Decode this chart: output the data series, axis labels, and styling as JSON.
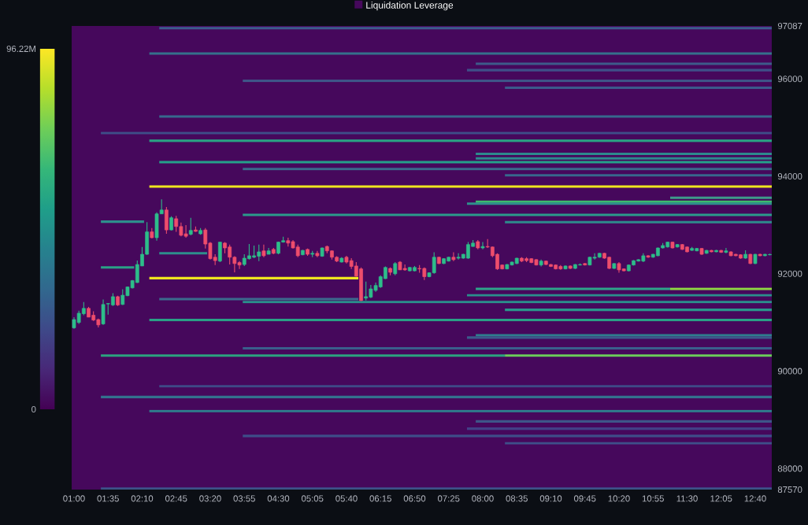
{
  "chart_data": {
    "type": "candlestick",
    "x": [
      1,
      1.0833,
      1.1667,
      1.25,
      1.3333,
      1.4167,
      1.5,
      1.5833,
      1.6667,
      1.75,
      1.8333,
      1.9167,
      2,
      2.0833,
      2.1667,
      2.25,
      2.3333,
      2.4167,
      2.5,
      2.5833,
      2.6667,
      2.75,
      2.8333,
      2.9167,
      3,
      3.0833,
      3.1667,
      3.25,
      3.3333,
      3.4167,
      3.5,
      3.5833,
      3.6667,
      3.75,
      3.8333,
      3.9167,
      4,
      4.0833,
      4.1667,
      4.25,
      4.3333,
      4.4167,
      4.5,
      4.5833,
      4.6667,
      4.75,
      4.8333,
      4.9167,
      5,
      5.0833,
      5.1667,
      5.25,
      5.3333,
      5.4167,
      5.5,
      5.5833,
      5.6667,
      5.75,
      5.8333,
      5.9167,
      6,
      6.0833,
      6.1667,
      6.25,
      6.3333,
      6.4167,
      6.5,
      6.5833,
      6.6667,
      6.75,
      6.8333,
      6.9167,
      7,
      7.0833,
      7.1667,
      7.25,
      7.3333,
      7.4167,
      7.5,
      7.5833,
      7.6667,
      7.75,
      7.8333,
      7.9167,
      8,
      8.0833,
      8.1667,
      8.25,
      8.3333,
      8.4167,
      8.5,
      8.5833,
      8.6667,
      8.75,
      8.8333,
      8.9167,
      9,
      9.0833,
      9.1667,
      9.25,
      9.3333,
      9.4167,
      9.5,
      9.5833,
      9.6667,
      9.75,
      9.8333,
      9.9167,
      10,
      10.0833,
      10.1667,
      10.25,
      10.3333,
      10.4167,
      10.5,
      10.5833,
      10.6667,
      10.75,
      10.8333,
      10.9167,
      11,
      11.0833,
      11.1667,
      11.25,
      11.3333,
      11.4167,
      11.5,
      11.5833,
      11.6667,
      11.75,
      11.8333,
      11.9167,
      12,
      12.0833,
      12.1667,
      12.25,
      12.3333,
      12.4167,
      12.5,
      12.5833,
      12.6667,
      12.75,
      12.8333,
      12.9167
    ],
    "ohlc": [
      [
        90890,
        91110,
        90870,
        91060
      ],
      [
        91000,
        91240,
        90970,
        91190
      ],
      [
        91180,
        91420,
        91150,
        91290
      ],
      [
        91290,
        91320,
        91110,
        91110
      ],
      [
        91150,
        91230,
        91030,
        91050
      ],
      [
        91060,
        91080,
        90900,
        90950
      ],
      [
        90970,
        91470,
        90950,
        91370
      ],
      [
        91380,
        91390,
        91160,
        91390
      ],
      [
        91360,
        91600,
        91340,
        91530
      ],
      [
        91530,
        91550,
        91340,
        91360
      ],
      [
        91370,
        91680,
        91360,
        91560
      ],
      [
        91550,
        91740,
        91540,
        91730
      ],
      [
        91710,
        91870,
        91700,
        91860
      ],
      [
        91820,
        92270,
        91810,
        92190
      ],
      [
        92160,
        92550,
        92160,
        92400
      ],
      [
        92400,
        93060,
        92390,
        92860
      ],
      [
        92860,
        92940,
        92730,
        92740
      ],
      [
        92740,
        93260,
        92680,
        93230
      ],
      [
        93230,
        93530,
        93230,
        93310
      ],
      [
        93310,
        93370,
        92820,
        92900
      ],
      [
        92900,
        93180,
        92890,
        93150
      ],
      [
        93130,
        93190,
        92860,
        92970
      ],
      [
        92970,
        93050,
        92770,
        92790
      ],
      [
        92820,
        93000,
        92740,
        92770
      ],
      [
        92810,
        93150,
        92790,
        92890
      ],
      [
        92900,
        92970,
        92860,
        92870
      ],
      [
        92820,
        92940,
        92800,
        92890
      ],
      [
        92900,
        92940,
        92520,
        92610
      ],
      [
        92630,
        92650,
        92290,
        92310
      ],
      [
        92340,
        92400,
        92180,
        92270
      ],
      [
        92260,
        92650,
        92240,
        92650
      ],
      [
        92630,
        92650,
        92420,
        92530
      ],
      [
        92550,
        92600,
        92190,
        92340
      ],
      [
        92340,
        92360,
        92030,
        92210
      ],
      [
        92230,
        92260,
        92100,
        92180
      ],
      [
        92190,
        92400,
        92160,
        92320
      ],
      [
        92310,
        92610,
        92290,
        92370
      ],
      [
        92340,
        92580,
        92320,
        92370
      ],
      [
        92360,
        92600,
        92260,
        92450
      ],
      [
        92470,
        92600,
        92340,
        92370
      ],
      [
        92400,
        92530,
        92400,
        92470
      ],
      [
        92500,
        92530,
        92400,
        92420
      ],
      [
        92420,
        92660,
        92400,
        92650
      ],
      [
        92650,
        92760,
        92640,
        92680
      ],
      [
        92680,
        92740,
        92560,
        92630
      ],
      [
        92660,
        92690,
        92520,
        92530
      ],
      [
        92550,
        92600,
        92340,
        92370
      ],
      [
        92390,
        92490,
        92380,
        92480
      ],
      [
        92500,
        92520,
        92370,
        92400
      ],
      [
        92400,
        92470,
        92340,
        92420
      ],
      [
        92420,
        92470,
        92340,
        92370
      ],
      [
        92360,
        92540,
        92350,
        92530
      ],
      [
        92560,
        92580,
        92420,
        92470
      ],
      [
        92470,
        92480,
        92290,
        92340
      ],
      [
        92340,
        92360,
        92240,
        92260
      ],
      [
        92240,
        92340,
        92230,
        92320
      ],
      [
        92340,
        92370,
        92210,
        92240
      ],
      [
        92270,
        92320,
        92100,
        92150
      ],
      [
        92160,
        92240,
        91940,
        91950
      ],
      [
        92100,
        92130,
        91440,
        91450
      ],
      [
        91500,
        91840,
        91450,
        91530
      ],
      [
        91520,
        91770,
        91500,
        91690
      ],
      [
        91660,
        91820,
        91630,
        91760
      ],
      [
        91730,
        91970,
        91710,
        91940
      ],
      [
        91900,
        92150,
        91890,
        92130
      ],
      [
        92110,
        92130,
        91970,
        92030
      ],
      [
        92000,
        92240,
        91970,
        92210
      ],
      [
        92240,
        92260,
        92080,
        92080
      ],
      [
        92110,
        92190,
        92060,
        92080
      ],
      [
        92060,
        92140,
        92050,
        92130
      ],
      [
        92060,
        92160,
        92050,
        92130
      ],
      [
        92110,
        92180,
        92020,
        92100
      ],
      [
        92110,
        92130,
        91870,
        91940
      ],
      [
        91940,
        92030,
        91930,
        92020
      ],
      [
        92020,
        92440,
        92000,
        92340
      ],
      [
        92340,
        92350,
        92200,
        92210
      ],
      [
        92210,
        92320,
        92200,
        92310
      ],
      [
        92260,
        92350,
        92250,
        92340
      ],
      [
        92340,
        92440,
        92260,
        92290
      ],
      [
        92320,
        92420,
        92290,
        92340
      ],
      [
        92320,
        92410,
        92310,
        92400
      ],
      [
        92320,
        92650,
        92310,
        92600
      ],
      [
        92560,
        92690,
        92560,
        92630
      ],
      [
        92660,
        92690,
        92500,
        92530
      ],
      [
        92530,
        92650,
        92500,
        92560
      ],
      [
        92560,
        92710,
        92530,
        92550
      ],
      [
        92550,
        92560,
        92340,
        92370
      ],
      [
        92400,
        92420,
        92080,
        92100
      ],
      [
        92180,
        92190,
        92090,
        92100
      ],
      [
        92100,
        92200,
        92090,
        92190
      ],
      [
        92180,
        92250,
        92170,
        92240
      ],
      [
        92210,
        92330,
        92200,
        92320
      ],
      [
        92320,
        92340,
        92240,
        92260
      ],
      [
        92310,
        92340,
        92240,
        92270
      ],
      [
        92310,
        92320,
        92220,
        92230
      ],
      [
        92290,
        92300,
        92170,
        92180
      ],
      [
        92180,
        92290,
        92150,
        92260
      ],
      [
        92260,
        92270,
        92180,
        92190
      ],
      [
        92190,
        92200,
        92140,
        92150
      ],
      [
        92180,
        92190,
        92090,
        92100
      ],
      [
        92150,
        92180,
        92080,
        92100
      ],
      [
        92100,
        92170,
        92090,
        92160
      ],
      [
        92160,
        92170,
        92100,
        92110
      ],
      [
        92110,
        92200,
        92100,
        92190
      ],
      [
        92180,
        92210,
        92170,
        92190
      ],
      [
        92210,
        92220,
        92170,
        92180
      ],
      [
        92180,
        92350,
        92170,
        92340
      ],
      [
        92320,
        92420,
        92290,
        92340
      ],
      [
        92340,
        92430,
        92330,
        92420
      ],
      [
        92420,
        92430,
        92310,
        92320
      ],
      [
        92340,
        92350,
        92100,
        92110
      ],
      [
        92110,
        92220,
        92100,
        92210
      ],
      [
        92210,
        92240,
        92020,
        92080
      ],
      [
        92100,
        92110,
        92050,
        92060
      ],
      [
        92060,
        92190,
        92050,
        92180
      ],
      [
        92180,
        92280,
        92170,
        92270
      ],
      [
        92260,
        92300,
        92250,
        92290
      ],
      [
        92260,
        92420,
        92240,
        92370
      ],
      [
        92370,
        92380,
        92330,
        92340
      ],
      [
        92340,
        92410,
        92330,
        92400
      ],
      [
        92370,
        92540,
        92360,
        92530
      ],
      [
        92530,
        92630,
        92520,
        92580
      ],
      [
        92550,
        92660,
        92540,
        92650
      ],
      [
        92650,
        92660,
        92520,
        92530
      ],
      [
        92550,
        92610,
        92540,
        92600
      ],
      [
        92600,
        92610,
        92490,
        92500
      ],
      [
        92550,
        92560,
        92440,
        92450
      ],
      [
        92480,
        92550,
        92470,
        92520
      ],
      [
        92470,
        92530,
        92460,
        92520
      ],
      [
        92520,
        92530,
        92390,
        92400
      ],
      [
        92420,
        92490,
        92410,
        92480
      ],
      [
        92480,
        92490,
        92440,
        92450
      ],
      [
        92450,
        92490,
        92440,
        92480
      ],
      [
        92480,
        92490,
        92430,
        92440
      ],
      [
        92440,
        92530,
        92420,
        92470
      ],
      [
        92450,
        92460,
        92360,
        92370
      ],
      [
        92400,
        92410,
        92360,
        92370
      ],
      [
        92390,
        92400,
        92310,
        92320
      ],
      [
        92320,
        92480,
        92310,
        92400
      ],
      [
        92400,
        92410,
        92200,
        92210
      ],
      [
        92210,
        92410,
        92200,
        92400
      ],
      [
        92400,
        92410,
        92360,
        92370
      ],
      [
        92370,
        92410,
        92360,
        92400
      ],
      [
        92390,
        92410,
        92380,
        92400
      ]
    ],
    "colors": [
      "#2dbd8a",
      "#2dbd8a",
      "#2dbd8a",
      "#ee4d6c",
      "#ee4d6c",
      "#ee4d6c",
      "#2dbd8a",
      "#2dbd8a",
      "#2dbd8a",
      "#ee4d6c",
      "#2dbd8a",
      "#2dbd8a",
      "#2dbd8a",
      "#2dbd8a",
      "#2dbd8a",
      "#2dbd8a",
      "#ee4d6c",
      "#2dbd8a",
      "#2dbd8a",
      "#ee4d6c",
      "#2dbd8a",
      "#ee4d6c",
      "#ee4d6c",
      "#ee4d6c",
      "#2dbd8a",
      "#ee4d6c",
      "#2dbd8a",
      "#ee4d6c",
      "#ee4d6c",
      "#ee4d6c",
      "#2dbd8a",
      "#ee4d6c",
      "#ee4d6c",
      "#ee4d6c",
      "#ee4d6c",
      "#2dbd8a",
      "#2dbd8a",
      "#2dbd8a",
      "#2dbd8a",
      "#ee4d6c",
      "#2dbd8a",
      "#ee4d6c",
      "#2dbd8a",
      "#2dbd8a",
      "#ee4d6c",
      "#ee4d6c",
      "#ee4d6c",
      "#2dbd8a",
      "#ee4d6c",
      "#2dbd8a",
      "#ee4d6c",
      "#2dbd8a",
      "#ee4d6c",
      "#ee4d6c",
      "#ee4d6c",
      "#2dbd8a",
      "#ee4d6c",
      "#ee4d6c",
      "#ee4d6c",
      "#ee4d6c",
      "#2dbd8a",
      "#2dbd8a",
      "#2dbd8a",
      "#2dbd8a",
      "#2dbd8a",
      "#ee4d6c",
      "#2dbd8a",
      "#ee4d6c",
      "#ee4d6c",
      "#2dbd8a",
      "#2dbd8a",
      "#ee4d6c",
      "#ee4d6c",
      "#2dbd8a",
      "#2dbd8a",
      "#ee4d6c",
      "#2dbd8a",
      "#2dbd8a",
      "#ee4d6c",
      "#2dbd8a",
      "#2dbd8a",
      "#2dbd8a",
      "#2dbd8a",
      "#ee4d6c",
      "#2dbd8a",
      "#ee4d6c",
      "#ee4d6c",
      "#ee4d6c",
      "#ee4d6c",
      "#2dbd8a",
      "#2dbd8a",
      "#2dbd8a",
      "#ee4d6c",
      "#ee4d6c",
      "#ee4d6c",
      "#ee4d6c",
      "#2dbd8a",
      "#ee4d6c",
      "#ee4d6c",
      "#ee4d6c",
      "#ee4d6c",
      "#2dbd8a",
      "#ee4d6c",
      "#2dbd8a",
      "#2dbd8a",
      "#ee4d6c",
      "#2dbd8a",
      "#2dbd8a",
      "#2dbd8a",
      "#ee4d6c",
      "#ee4d6c",
      "#2dbd8a",
      "#ee4d6c",
      "#ee4d6c",
      "#2dbd8a",
      "#2dbd8a",
      "#2dbd8a",
      "#2dbd8a",
      "#ee4d6c",
      "#2dbd8a",
      "#2dbd8a",
      "#2dbd8a",
      "#2dbd8a",
      "#ee4d6c",
      "#2dbd8a",
      "#ee4d6c",
      "#ee4d6c",
      "#2dbd8a",
      "#2dbd8a",
      "#ee4d6c",
      "#2dbd8a",
      "#ee4d6c",
      "#2dbd8a",
      "#ee4d6c",
      "#2dbd8a",
      "#ee4d6c",
      "#ee4d6c",
      "#ee4d6c",
      "#2dbd8a",
      "#ee4d6c",
      "#2dbd8a",
      "#ee4d6c",
      "#2dbd8a",
      "#2dbd8a"
    ],
    "series": [
      {
        "type": "line",
        "x": [
          2.46,
          12.95
        ],
        "values": [
          97040,
          97040
        ],
        "color": "#3b5b8c"
      },
      {
        "type": "line",
        "x": [
          2.29,
          12.95
        ],
        "values": [
          96520,
          96520
        ],
        "color": "#35708c"
      },
      {
        "type": "line",
        "x": [
          7.88,
          12.95
        ],
        "values": [
          96310,
          96310
        ],
        "color": "#3d5a8a"
      },
      {
        "type": "line",
        "x": [
          7.73,
          12.95
        ],
        "values": [
          96180,
          96180
        ],
        "color": "#3e4f88"
      },
      {
        "type": "line",
        "x": [
          3.89,
          12.95
        ],
        "values": [
          95960,
          95960
        ],
        "color": "#3e5a8b"
      },
      {
        "type": "line",
        "x": [
          8.38,
          12.95
        ],
        "values": [
          95820,
          95820
        ],
        "color": "#3b5a8b"
      },
      {
        "type": "line",
        "x": [
          2.46,
          12.95
        ],
        "values": [
          95230,
          95230
        ],
        "color": "#36698d"
      },
      {
        "type": "line",
        "x": [
          1.46,
          12.95
        ],
        "values": [
          94890,
          94890
        ],
        "color": "#3e4d88"
      },
      {
        "type": "line",
        "x": [
          2.29,
          12.95
        ],
        "values": [
          94730,
          94730
        ],
        "color": "#2aa384"
      },
      {
        "type": "line",
        "x": [
          7.88,
          12.95
        ],
        "values": [
          94460,
          94460
        ],
        "color": "#2d8a8d"
      },
      {
        "type": "line",
        "x": [
          7.88,
          12.95
        ],
        "values": [
          94370,
          94370
        ],
        "color": "#2d8a8d"
      },
      {
        "type": "line",
        "x": [
          2.46,
          12.95
        ],
        "values": [
          94290,
          94290
        ],
        "color": "#24a08a"
      },
      {
        "type": "line",
        "x": [
          3.89,
          12.95
        ],
        "values": [
          94150,
          94150
        ],
        "color": "#3b6a8d"
      },
      {
        "type": "line",
        "x": [
          8.38,
          12.95
        ],
        "values": [
          94020,
          94020
        ],
        "color": "#37688d"
      },
      {
        "type": "line",
        "x": [
          2.29,
          12.95
        ],
        "values": [
          93790,
          93790
        ],
        "color": "#f0e51f"
      },
      {
        "type": "line",
        "x": [
          11.21,
          12.95
        ],
        "values": [
          93560,
          93560
        ],
        "color": "#3e9a8a"
      },
      {
        "type": "line",
        "x": [
          7.88,
          12.95
        ],
        "values": [
          93480,
          93480
        ],
        "color": "#3dbd6d"
      },
      {
        "type": "line",
        "x": [
          7.73,
          12.95
        ],
        "values": [
          93440,
          93440
        ],
        "color": "#2f8f8c"
      },
      {
        "type": "line",
        "x": [
          3.89,
          12.95
        ],
        "values": [
          93210,
          93210
        ],
        "color": "#2b9a8b"
      },
      {
        "type": "line",
        "x": [
          8.38,
          12.95
        ],
        "values": [
          93060,
          93060
        ],
        "color": "#2e8a8c"
      },
      {
        "type": "line",
        "x": [
          1.46,
          2.2
        ],
        "values": [
          93070,
          93070
        ],
        "color": "#2e8e8c"
      },
      {
        "type": "line",
        "x": [
          2.46,
          3.28
        ],
        "values": [
          92420,
          92420
        ],
        "color": "#2e8e8c"
      },
      {
        "type": "line",
        "x": [
          1.46,
          2.03
        ],
        "values": [
          92130,
          92130
        ],
        "color": "#2aa086"
      },
      {
        "type": "line",
        "x": [
          2.29,
          5.87
        ],
        "values": [
          91910,
          91910
        ],
        "color": "#f0e51f"
      },
      {
        "type": "line",
        "x": [
          7.88,
          11.21
        ],
        "values": [
          91690,
          91690
        ],
        "color": "#2ea48a"
      },
      {
        "type": "line",
        "x": [
          11.21,
          12.95
        ],
        "values": [
          91690,
          91690
        ],
        "color": "#8fd744"
      },
      {
        "type": "line",
        "x": [
          7.73,
          12.95
        ],
        "values": [
          91560,
          91560
        ],
        "color": "#2a8f8c"
      },
      {
        "type": "line",
        "x": [
          2.46,
          5.87
        ],
        "values": [
          91480,
          91480
        ],
        "color": "#3b6a8d"
      },
      {
        "type": "line",
        "x": [
          3.89,
          12.95
        ],
        "values": [
          91420,
          91420
        ],
        "color": "#2a8f8c"
      },
      {
        "type": "line",
        "x": [
          8.38,
          12.95
        ],
        "values": [
          91260,
          91260
        ],
        "color": "#2a958b"
      },
      {
        "type": "line",
        "x": [
          2.29,
          12.95
        ],
        "values": [
          91050,
          91050
        ],
        "color": "#2aa086"
      },
      {
        "type": "line",
        "x": [
          7.88,
          12.95
        ],
        "values": [
          90740,
          90740
        ],
        "color": "#2f7d8e"
      },
      {
        "type": "line",
        "x": [
          7.73,
          12.95
        ],
        "values": [
          90690,
          90690
        ],
        "color": "#3b5a8b"
      },
      {
        "type": "line",
        "x": [
          3.89,
          12.95
        ],
        "values": [
          90470,
          90470
        ],
        "color": "#3a5f8c"
      },
      {
        "type": "line",
        "x": [
          1.46,
          8.38
        ],
        "values": [
          90320,
          90320
        ],
        "color": "#2ba37f"
      },
      {
        "type": "line",
        "x": [
          8.38,
          12.95
        ],
        "values": [
          90320,
          90320
        ],
        "color": "#6ccd5a"
      },
      {
        "type": "line",
        "x": [
          2.46,
          12.95
        ],
        "values": [
          89690,
          89690
        ],
        "color": "#3e4a87"
      },
      {
        "type": "line",
        "x": [
          1.46,
          12.95
        ],
        "values": [
          89470,
          89470
        ],
        "color": "#33718e"
      },
      {
        "type": "line",
        "x": [
          2.29,
          12.95
        ],
        "values": [
          89180,
          89180
        ],
        "color": "#2f7f8e"
      },
      {
        "type": "line",
        "x": [
          7.88,
          12.95
        ],
        "values": [
          88970,
          88970
        ],
        "color": "#3e5589"
      },
      {
        "type": "line",
        "x": [
          7.73,
          12.95
        ],
        "values": [
          88820,
          88820
        ],
        "color": "#424086"
      },
      {
        "type": "line",
        "x": [
          3.89,
          12.95
        ],
        "values": [
          88670,
          88670
        ],
        "color": "#3e4d88"
      },
      {
        "type": "line",
        "x": [
          8.38,
          12.95
        ],
        "values": [
          88520,
          88520
        ],
        "color": "#3e4f89"
      },
      {
        "type": "line",
        "x": [
          1.46,
          12.95
        ],
        "values": [
          87590,
          87590
        ],
        "color": "#3d5288"
      }
    ],
    "bands": [
      {
        "axis": "y",
        "from": 87570,
        "to": 97087,
        "label": "Liquidation Leverage",
        "color": "#46085c"
      }
    ],
    "legend": "top",
    "xlim": [
      0.96,
      12.95
    ],
    "xticks": [
      {
        "value": 1,
        "label": "01:00"
      },
      {
        "value": 1.5833,
        "label": "01:35"
      },
      {
        "value": 2.1667,
        "label": "02:10"
      },
      {
        "value": 2.75,
        "label": "02:45"
      },
      {
        "value": 3.3333,
        "label": "03:20"
      },
      {
        "value": 3.9167,
        "label": "03:55"
      },
      {
        "value": 4.5,
        "label": "04:30"
      },
      {
        "value": 5.0833,
        "label": "05:05"
      },
      {
        "value": 5.6667,
        "label": "05:40"
      },
      {
        "value": 6.25,
        "label": "06:15"
      },
      {
        "value": 6.8333,
        "label": "06:50"
      },
      {
        "value": 7.4167,
        "label": "07:25"
      },
      {
        "value": 8,
        "label": "08:00"
      },
      {
        "value": 8.5833,
        "label": "08:35"
      },
      {
        "value": 9.1667,
        "label": "09:10"
      },
      {
        "value": 9.75,
        "label": "09:45"
      },
      {
        "value": 10.3333,
        "label": "10:20"
      },
      {
        "value": 10.9167,
        "label": "10:55"
      },
      {
        "value": 11.5,
        "label": "11:30"
      },
      {
        "value": 12.0833,
        "label": "12:05"
      },
      {
        "value": 12.6667,
        "label": "12:40"
      }
    ],
    "ylim": [
      87570,
      97087
    ],
    "yticks": [
      87570,
      88000,
      90000,
      92000,
      94000,
      96000,
      97087
    ],
    "clim": [
      0,
      96.22
    ],
    "cticks": [
      {
        "value": 0,
        "label": "0"
      },
      {
        "value": 96.22,
        "label": "96.22M"
      }
    ]
  }
}
